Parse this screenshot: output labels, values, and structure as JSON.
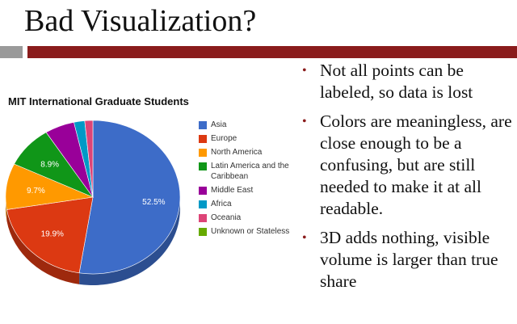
{
  "slide": {
    "title": "Bad Visualization?"
  },
  "bullets": [
    "Not all points can be labeled, so data is lost",
    "Colors are meaningless, are close enough to be a confusing, but are still needed to make it at all readable.",
    "3D adds nothing, visible volume is larger than true share"
  ],
  "bullet_glyph": "•",
  "chart_data": {
    "type": "pie",
    "title": "MIT International Graduate Students",
    "slices": [
      {
        "label": "Asia",
        "value": 52.5,
        "color": "#3d6cc8",
        "show_label": "52.5%"
      },
      {
        "label": "Europe",
        "value": 19.9,
        "color": "#dc3912",
        "show_label": "19.9%"
      },
      {
        "label": "North America",
        "value": 9.7,
        "color": "#ff9900",
        "show_label": "9.7%"
      },
      {
        "label": "Latin America and the Caribbean",
        "value": 8.9,
        "color": "#109618",
        "show_label": "8.9%"
      },
      {
        "label": "Middle East",
        "value": 5.5,
        "color": "#990099",
        "show_label": ""
      },
      {
        "label": "Africa",
        "value": 2.0,
        "color": "#0099c6",
        "show_label": ""
      },
      {
        "label": "Oceania",
        "value": 1.5,
        "color": "#dd4477",
        "show_label": ""
      },
      {
        "label": "Unknown or Stateless",
        "value": 0.0,
        "color": "#66aa00",
        "show_label": ""
      }
    ],
    "legend_position": "right",
    "style": "3d"
  }
}
